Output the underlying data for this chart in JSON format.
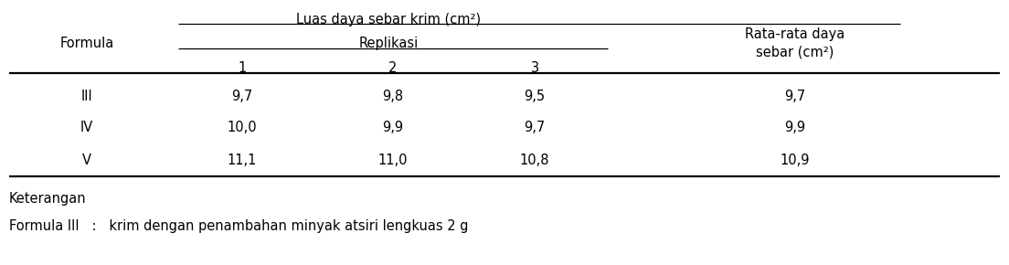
{
  "col_headers_main": "Luas daya sebar krim (cm²)",
  "col_headers_sub": "Replikasi",
  "col_last_header_line1": "Rata-rata daya",
  "col_last_header_line2": "sebar (cm²)",
  "col_rep_headers": [
    "1",
    "2",
    "3"
  ],
  "row_label_header": "Formula",
  "rows": [
    {
      "formula": "III",
      "rep1": "9,7",
      "rep2": "9,8",
      "rep3": "9,5",
      "avg": "9,7"
    },
    {
      "formula": "IV",
      "rep1": "10,0",
      "rep2": "9,9",
      "rep3": "9,7",
      "avg": "9,9"
    },
    {
      "formula": "V",
      "rep1": "11,1",
      "rep2": "11,0",
      "rep3": "10,8",
      "avg": "10,9"
    }
  ],
  "keterangan_label": "Keterangan",
  "keterangan_text": "Formula III   :   krim dengan penambahan minyak atsiri lengkuas 2 g",
  "font_size": 10.5,
  "font_family": "DejaVu Sans"
}
